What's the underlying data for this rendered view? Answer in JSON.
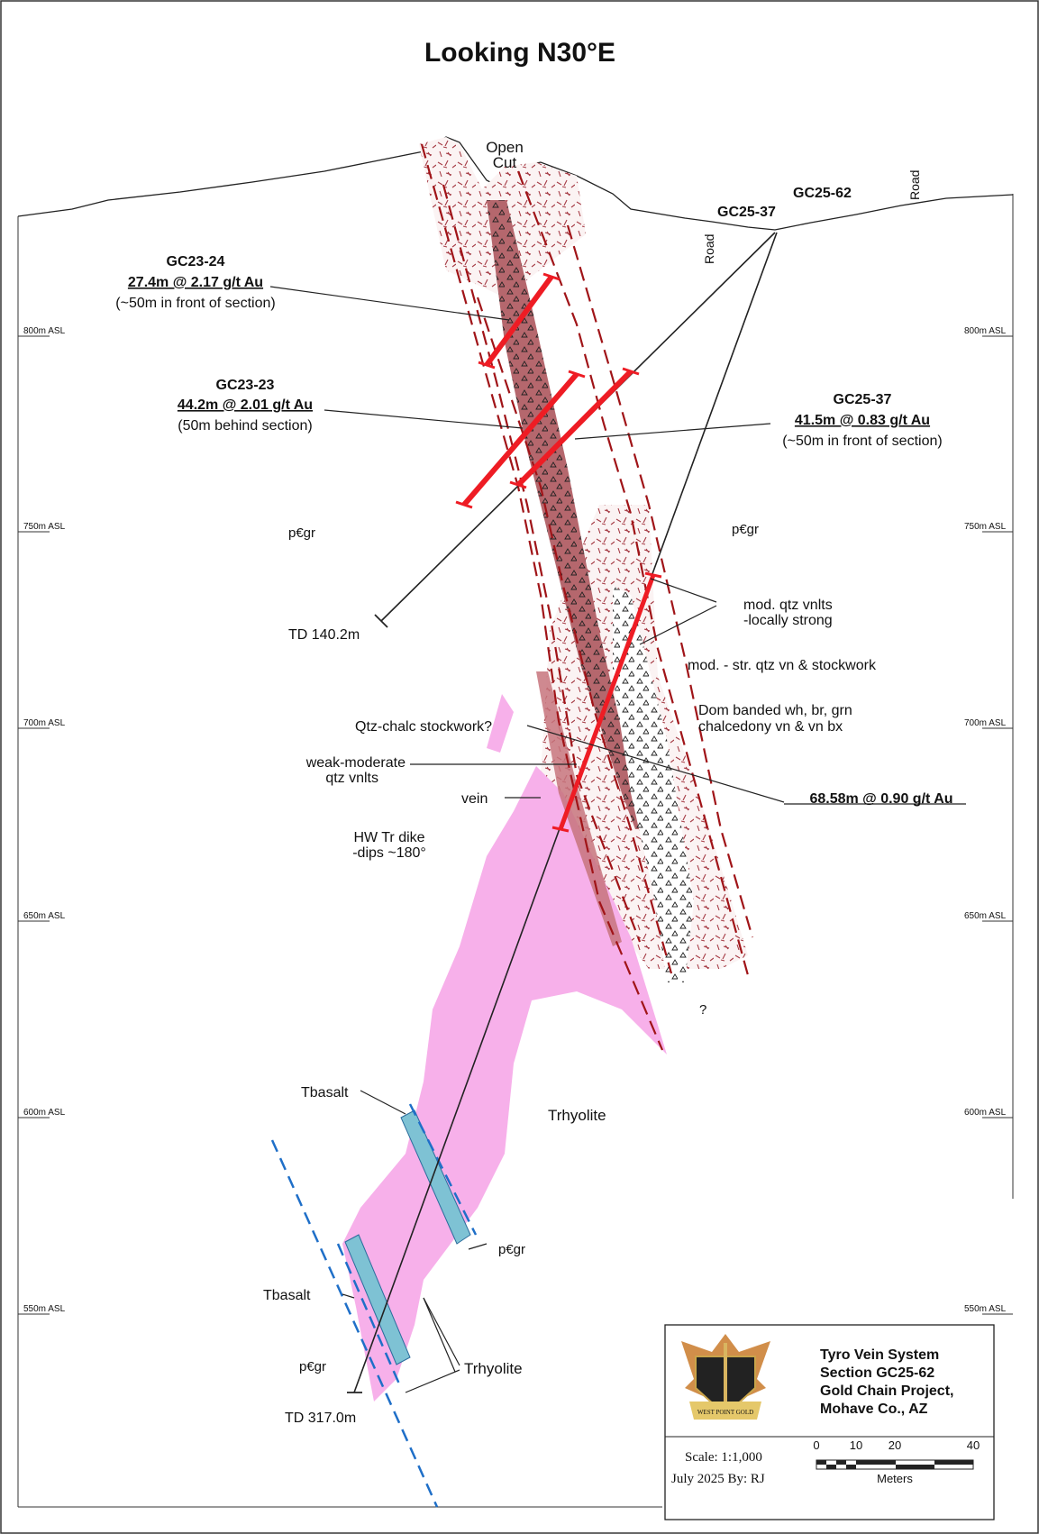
{
  "title": "Looking N30°E",
  "elevation_labels": [
    "800m ASL",
    "750m ASL",
    "700m ASL",
    "650m ASL",
    "600m ASL",
    "550m ASL"
  ],
  "surface_labels": {
    "open_cut_line1": "Open",
    "open_cut_line2": "Cut",
    "road_left": "Road",
    "road_right": "Road",
    "hole_gc25_37": "GC25-37",
    "hole_gc25_62": "GC25-62"
  },
  "intercepts": {
    "gc23_24": {
      "hole": "GC23-24",
      "result": "27.4m @ 2.17 g/t Au",
      "note": "(~50m in front of section)"
    },
    "gc23_23": {
      "hole": "GC23-23",
      "result": "44.2m @ 2.01 g/t Au",
      "note": "(50m behind section)"
    },
    "gc25_37": {
      "hole": "GC25-37",
      "result": "41.5m @ 0.83 g/t Au",
      "note": "(~50m in front of section)"
    },
    "gc25_62": {
      "result": "68.58m @ 0.90 g/t Au"
    }
  },
  "annotations": {
    "td_140": "TD 140.2m",
    "td_317": "TD 317.0m",
    "pcgr": "p€gr",
    "qtz_vnlts_1": "mod. qtz vnlts",
    "qtz_vnlts_2": "-locally strong",
    "stockwork": "mod. - str. qtz vn & stockwork",
    "dom_1": "Dom banded wh, br, grn",
    "dom_2": "chalcedony vn & vn bx",
    "qtz_chalc": "Qtz-chalc stockwork?",
    "weak_mod_1": "weak-moderate",
    "weak_mod_2": "qtz vnlts",
    "vein": "vein",
    "hw_dike_1": "HW Tr dike",
    "hw_dike_2": "-dips ~180°",
    "question": "?",
    "trhyolite": "Trhyolite",
    "tbasalt": "Tbasalt"
  },
  "title_block": {
    "line1": "Tyro Vein System",
    "line2": "Section GC25-62",
    "line3": "Gold Chain Project,",
    "line4": "Mohave Co., AZ",
    "scale": "Scale: 1:1,000",
    "date_by": "July 2025   By: RJ",
    "scalebar_ticks": [
      "0",
      "10",
      "20",
      "40"
    ],
    "scalebar_unit": "Meters",
    "logo_text": "WEST POINT GOLD"
  },
  "colors": {
    "drill_intercept": "#ee1c24",
    "breccia": "#b5676d",
    "rhyolite": "#f7b0ea",
    "basalt": "#7ec2d4",
    "structure_dash": "#a01418",
    "basalt_dash": "#1f6fc8"
  }
}
